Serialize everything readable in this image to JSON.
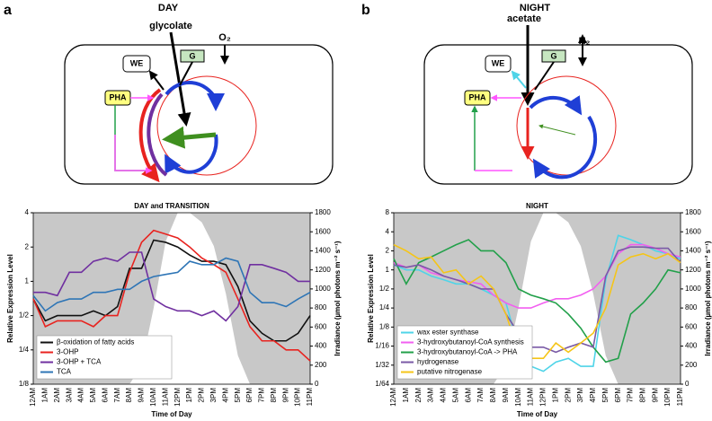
{
  "panels": [
    {
      "letter": "a",
      "heading": "DAY",
      "metabolite": "glycolate",
      "gas": "O₂",
      "we": "WE",
      "g": "G",
      "pha": "PHA"
    },
    {
      "letter": "b",
      "heading": "NIGHT",
      "metabolite": "acetate",
      "gas": "H₂",
      "we": "WE",
      "g": "G",
      "pha": "PHA"
    }
  ],
  "chart_data": [
    {
      "type": "line",
      "title": "DAY and TRANSITION",
      "xlabel": "Time of Day",
      "ylabel": "Relative Expression Level",
      "y2label": "Irradiance (µmol photons m⁻² s⁻¹)",
      "categories": [
        "12AM",
        "1AM",
        "2AM",
        "3AM",
        "4AM",
        "5AM",
        "6AM",
        "7AM",
        "8AM",
        "9AM",
        "10AM",
        "11AM",
        "12PM",
        "1PM",
        "2PM",
        "3PM",
        "4PM",
        "5PM",
        "6PM",
        "7PM",
        "8PM",
        "9PM",
        "10PM",
        "11PM"
      ],
      "ylog": true,
      "ylim": [
        0.125,
        4
      ],
      "yticks": [
        {
          "value": 0.125,
          "label": "1/8"
        },
        {
          "value": 0.25,
          "label": "1/4"
        },
        {
          "value": 0.5,
          "label": "1/2"
        },
        1,
        2,
        4
      ],
      "y2lim": [
        0,
        1800
      ],
      "y2ticks": [
        0,
        200,
        400,
        600,
        800,
        1000,
        1200,
        1400,
        1600,
        1800
      ],
      "irradiance": {
        "axis": "y2",
        "values": [
          0,
          0,
          0,
          0,
          0,
          0,
          0,
          0,
          0,
          200,
          800,
          1500,
          1800,
          1800,
          1700,
          1450,
          950,
          300,
          0,
          0,
          0,
          0,
          0,
          0
        ]
      },
      "legend": "lower left",
      "series": [
        {
          "name": "β-oxidation of fatty acids",
          "color": "#111111",
          "values": [
            0.7,
            0.45,
            0.5,
            0.5,
            0.5,
            0.55,
            0.5,
            0.6,
            1.3,
            1.3,
            2.3,
            2.2,
            2.0,
            1.7,
            1.5,
            1.5,
            1.4,
            0.9,
            0.45,
            0.35,
            0.3,
            0.3,
            0.35,
            0.5
          ]
        },
        {
          "name": "3-OHP",
          "color": "#e8231f",
          "values": [
            0.7,
            0.4,
            0.45,
            0.45,
            0.45,
            0.4,
            0.5,
            0.5,
            1.2,
            2.2,
            2.8,
            2.6,
            2.4,
            2.0,
            1.6,
            1.4,
            1.2,
            0.7,
            0.4,
            0.3,
            0.3,
            0.25,
            0.25,
            0.2
          ]
        },
        {
          "name": "3-OHP + TCA",
          "color": "#7030a0",
          "values": [
            0.8,
            0.8,
            0.75,
            1.2,
            1.2,
            1.5,
            1.6,
            1.5,
            1.8,
            1.8,
            0.7,
            0.6,
            0.55,
            0.55,
            0.5,
            0.55,
            0.45,
            0.6,
            1.4,
            1.4,
            1.3,
            1.2,
            1.0,
            1.0
          ]
        },
        {
          "name": "TCA",
          "color": "#2e75b6",
          "values": [
            0.75,
            0.55,
            0.65,
            0.7,
            0.7,
            0.8,
            0.8,
            0.85,
            0.85,
            1.0,
            1.1,
            1.15,
            1.2,
            1.5,
            1.4,
            1.4,
            1.6,
            1.5,
            0.8,
            0.65,
            0.65,
            0.6,
            0.7,
            0.8
          ]
        }
      ]
    },
    {
      "type": "line",
      "title": "NIGHT",
      "xlabel": "Time of Day",
      "ylabel": "Relative Expression Level",
      "y2label": "Irradiance (µmol photons m⁻² s⁻¹)",
      "categories": [
        "12AM",
        "1AM",
        "2AM",
        "3AM",
        "4AM",
        "5AM",
        "6AM",
        "7AM",
        "8AM",
        "9AM",
        "10AM",
        "11AM",
        "12PM",
        "1PM",
        "2PM",
        "3PM",
        "4PM",
        "5PM",
        "6PM",
        "7PM",
        "8PM",
        "9PM",
        "10PM",
        "11PM"
      ],
      "ylog": true,
      "ylim": [
        0.015625,
        8
      ],
      "yticks": [
        {
          "value": 0.015625,
          "label": "1/64"
        },
        {
          "value": 0.03125,
          "label": "1/32"
        },
        {
          "value": 0.0625,
          "label": "1/16"
        },
        {
          "value": 0.125,
          "label": "1/8"
        },
        {
          "value": 0.25,
          "label": "1/4"
        },
        {
          "value": 0.5,
          "label": "1/2"
        },
        1,
        2,
        4,
        8
      ],
      "y2lim": [
        0,
        1800
      ],
      "y2ticks": [
        0,
        200,
        400,
        600,
        800,
        1000,
        1200,
        1400,
        1600,
        1800
      ],
      "irradiance": {
        "axis": "y2",
        "values": [
          0,
          0,
          0,
          0,
          0,
          0,
          0,
          0,
          0,
          200,
          800,
          1500,
          1800,
          1800,
          1700,
          1450,
          950,
          300,
          0,
          0,
          0,
          0,
          0,
          0
        ]
      },
      "legend": "lower left",
      "series": [
        {
          "name": "wax ester synthase",
          "color": "#4fd4e8",
          "values": [
            1.2,
            1.0,
            1.0,
            0.8,
            0.7,
            0.6,
            0.6,
            0.5,
            0.4,
            0.3,
            0.06,
            0.03,
            0.025,
            0.035,
            0.04,
            0.03,
            0.03,
            0.7,
            3.5,
            3.0,
            2.5,
            2.0,
            1.8,
            1.5
          ]
        },
        {
          "name": "3-hydroxybutanoyl-CoA synthesis",
          "color": "#f25ff0",
          "values": [
            1.3,
            1.1,
            1.2,
            0.9,
            0.8,
            0.7,
            0.65,
            0.6,
            0.4,
            0.3,
            0.25,
            0.25,
            0.3,
            0.35,
            0.35,
            0.4,
            0.5,
            0.8,
            1.8,
            2.5,
            2.5,
            2.2,
            1.8,
            1.6
          ]
        },
        {
          "name": "3-hydroxybutanoyl-CoA -> PHA",
          "color": "#22a04a",
          "values": [
            1.5,
            0.6,
            1.3,
            1.6,
            2.0,
            2.5,
            3.0,
            2.0,
            2.0,
            1.3,
            0.5,
            0.4,
            0.35,
            0.3,
            0.2,
            0.12,
            0.06,
            0.035,
            0.04,
            0.2,
            0.3,
            0.5,
            1.0,
            0.9
          ]
        },
        {
          "name": "hydrogenase",
          "color": "#7a5aa6",
          "values": [
            1.2,
            1.1,
            1.2,
            1.0,
            0.8,
            0.7,
            0.6,
            0.5,
            0.5,
            0.2,
            0.1,
            0.06,
            0.06,
            0.05,
            0.06,
            0.07,
            0.06,
            0.8,
            2.0,
            2.3,
            2.3,
            2.2,
            2.2,
            1.3
          ]
        },
        {
          "name": "putative nitrogenase",
          "color": "#f5c518",
          "values": [
            2.5,
            2.0,
            1.5,
            1.6,
            0.9,
            1.0,
            0.6,
            0.8,
            0.5,
            0.2,
            0.05,
            0.04,
            0.04,
            0.07,
            0.05,
            0.07,
            0.1,
            0.25,
            1.2,
            1.6,
            1.8,
            1.5,
            1.8,
            1.3
          ]
        }
      ]
    }
  ]
}
